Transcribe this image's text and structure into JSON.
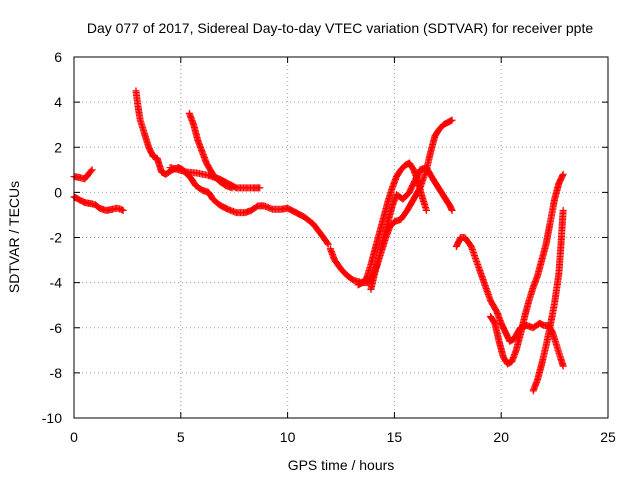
{
  "chart_data": {
    "type": "scatter",
    "title": "Day 077 of 2017, Sidereal Day-to-day VTEC variation (SDTVAR) for receiver ppte",
    "xlabel": "GPS time / hours",
    "ylabel": "SDTVAR / TECUs",
    "xlim": [
      0,
      25
    ],
    "ylim": [
      -10,
      6
    ],
    "xticks": [
      "0",
      "5",
      "10",
      "15",
      "20",
      "25"
    ],
    "yticks": [
      "-10",
      "-8",
      "-6",
      "-4",
      "-2",
      "0",
      "2",
      "4",
      "6"
    ],
    "grid": true,
    "marker": "+",
    "color": "#ff0000",
    "series": [
      {
        "points": [
          [
            0.0,
            0.7
          ],
          [
            0.3,
            0.65
          ],
          [
            0.5,
            0.6
          ],
          [
            0.6,
            0.7
          ],
          [
            0.7,
            0.85
          ],
          [
            0.85,
            1.0
          ]
        ]
      },
      {
        "points": [
          [
            0.0,
            -0.2
          ],
          [
            0.2,
            -0.3
          ],
          [
            0.5,
            -0.45
          ],
          [
            0.8,
            -0.5
          ],
          [
            1.0,
            -0.55
          ],
          [
            1.2,
            -0.7
          ],
          [
            1.5,
            -0.8
          ],
          [
            1.8,
            -0.75
          ],
          [
            2.0,
            -0.7
          ],
          [
            2.2,
            -0.75
          ],
          [
            2.3,
            -0.8
          ]
        ]
      },
      {
        "points": [
          [
            2.9,
            4.5
          ],
          [
            3.0,
            3.8
          ],
          [
            3.1,
            3.2
          ],
          [
            3.3,
            2.6
          ],
          [
            3.5,
            2.0
          ],
          [
            3.7,
            1.6
          ],
          [
            3.9,
            1.5
          ],
          [
            4.0,
            1.2
          ],
          [
            4.1,
            0.9
          ],
          [
            4.3,
            0.8
          ],
          [
            4.6,
            1.0
          ],
          [
            4.9,
            1.1
          ],
          [
            5.1,
            1.0
          ],
          [
            5.3,
            0.8
          ],
          [
            5.5,
            0.6
          ],
          [
            5.7,
            0.3
          ],
          [
            6.0,
            0.1
          ],
          [
            6.3,
            0.0
          ],
          [
            6.5,
            -0.3
          ],
          [
            6.8,
            -0.55
          ],
          [
            7.2,
            -0.75
          ],
          [
            7.6,
            -0.9
          ],
          [
            8.0,
            -0.9
          ],
          [
            8.3,
            -0.8
          ],
          [
            8.6,
            -0.6
          ],
          [
            8.9,
            -0.6
          ],
          [
            9.3,
            -0.75
          ],
          [
            9.7,
            -0.75
          ],
          [
            10.0,
            -0.7
          ],
          [
            10.4,
            -0.9
          ],
          [
            10.8,
            -1.1
          ],
          [
            11.2,
            -1.4
          ],
          [
            11.6,
            -1.9
          ],
          [
            11.9,
            -2.3
          ]
        ]
      },
      {
        "points": [
          [
            4.5,
            1.1
          ],
          [
            4.9,
            1.0
          ],
          [
            5.3,
            0.9
          ],
          [
            5.8,
            0.85
          ],
          [
            6.3,
            0.75
          ],
          [
            6.8,
            0.6
          ],
          [
            7.2,
            0.4
          ],
          [
            7.6,
            0.2
          ],
          [
            8.0,
            0.2
          ],
          [
            8.4,
            0.2
          ],
          [
            8.7,
            0.2
          ]
        ]
      },
      {
        "points": [
          [
            5.4,
            3.5
          ],
          [
            5.6,
            3.0
          ],
          [
            5.8,
            2.3
          ],
          [
            6.0,
            1.8
          ],
          [
            6.2,
            1.3
          ],
          [
            6.5,
            0.8
          ],
          [
            6.8,
            0.5
          ],
          [
            7.1,
            0.3
          ],
          [
            7.4,
            0.2
          ]
        ]
      },
      {
        "points": [
          [
            12.0,
            -2.5
          ],
          [
            12.2,
            -3.0
          ],
          [
            12.5,
            -3.4
          ],
          [
            12.8,
            -3.7
          ],
          [
            13.1,
            -3.9
          ],
          [
            13.5,
            -4.0
          ],
          [
            13.8,
            -4.0
          ],
          [
            14.0,
            -3.7
          ],
          [
            14.2,
            -3.2
          ],
          [
            14.4,
            -2.6
          ],
          [
            14.6,
            -2.0
          ],
          [
            14.8,
            -1.5
          ],
          [
            15.0,
            -1.3
          ],
          [
            15.3,
            -1.2
          ],
          [
            15.6,
            -0.8
          ],
          [
            15.9,
            -0.3
          ],
          [
            16.2,
            0.2
          ],
          [
            16.5,
            1.0
          ],
          [
            16.7,
            1.8
          ],
          [
            16.9,
            2.5
          ],
          [
            17.1,
            2.8
          ],
          [
            17.3,
            3.0
          ],
          [
            17.5,
            3.1
          ],
          [
            17.7,
            3.2
          ]
        ]
      },
      {
        "points": [
          [
            13.3,
            -4.1
          ],
          [
            13.5,
            -4.0
          ],
          [
            13.7,
            -3.8
          ],
          [
            13.9,
            -3.2
          ],
          [
            14.1,
            -2.5
          ],
          [
            14.3,
            -1.8
          ],
          [
            14.5,
            -1.1
          ],
          [
            14.7,
            -0.4
          ],
          [
            14.9,
            0.2
          ],
          [
            15.1,
            0.7
          ],
          [
            15.3,
            1.0
          ],
          [
            15.5,
            1.2
          ],
          [
            15.7,
            1.3
          ],
          [
            15.9,
            1.0
          ],
          [
            16.1,
            0.5
          ],
          [
            16.3,
            -0.2
          ],
          [
            16.5,
            -0.8
          ]
        ]
      },
      {
        "points": [
          [
            13.9,
            -4.3
          ],
          [
            14.1,
            -3.5
          ],
          [
            14.3,
            -2.8
          ],
          [
            14.5,
            -2.0
          ],
          [
            14.7,
            -1.3
          ],
          [
            14.9,
            -0.6
          ],
          [
            15.1,
            -0.1
          ],
          [
            15.4,
            -0.3
          ],
          [
            15.7,
            0.0
          ],
          [
            16.0,
            0.6
          ],
          [
            16.2,
            1.0
          ],
          [
            16.5,
            1.1
          ],
          [
            16.8,
            0.6
          ],
          [
            17.0,
            0.3
          ],
          [
            17.2,
            0.0
          ],
          [
            17.4,
            -0.3
          ],
          [
            17.6,
            -0.6
          ],
          [
            17.7,
            -0.8
          ]
        ]
      },
      {
        "points": [
          [
            17.9,
            -2.4
          ],
          [
            18.1,
            -2.0
          ],
          [
            18.3,
            -2.0
          ],
          [
            18.6,
            -2.4
          ],
          [
            18.9,
            -3.2
          ],
          [
            19.2,
            -4.0
          ],
          [
            19.5,
            -4.8
          ],
          [
            19.8,
            -5.3
          ],
          [
            20.0,
            -5.8
          ],
          [
            20.2,
            -6.2
          ],
          [
            20.4,
            -6.6
          ],
          [
            20.6,
            -6.5
          ],
          [
            20.9,
            -6.0
          ],
          [
            21.2,
            -5.9
          ],
          [
            21.5,
            -6.0
          ],
          [
            21.8,
            -5.8
          ],
          [
            22.0,
            -5.9
          ],
          [
            22.2,
            -5.9
          ],
          [
            22.4,
            -6.2
          ],
          [
            22.6,
            -6.8
          ],
          [
            22.8,
            -7.4
          ],
          [
            22.9,
            -7.7
          ]
        ]
      },
      {
        "points": [
          [
            19.5,
            -5.5
          ],
          [
            19.7,
            -5.8
          ],
          [
            19.9,
            -6.6
          ],
          [
            20.1,
            -7.3
          ],
          [
            20.3,
            -7.6
          ],
          [
            20.5,
            -7.5
          ],
          [
            20.7,
            -7.0
          ],
          [
            20.9,
            -6.3
          ],
          [
            21.1,
            -5.5
          ],
          [
            21.3,
            -4.8
          ],
          [
            21.5,
            -4.2
          ],
          [
            21.7,
            -3.7
          ],
          [
            21.9,
            -3.0
          ],
          [
            22.1,
            -2.3
          ],
          [
            22.3,
            -1.3
          ],
          [
            22.5,
            -0.3
          ],
          [
            22.7,
            0.4
          ],
          [
            22.9,
            0.8
          ]
        ]
      },
      {
        "points": [
          [
            21.5,
            -8.8
          ],
          [
            21.7,
            -8.3
          ],
          [
            21.9,
            -7.6
          ],
          [
            22.1,
            -6.8
          ],
          [
            22.3,
            -5.9
          ],
          [
            22.5,
            -4.9
          ],
          [
            22.7,
            -3.6
          ],
          [
            22.8,
            -2.3
          ],
          [
            22.9,
            -0.8
          ]
        ]
      }
    ]
  }
}
